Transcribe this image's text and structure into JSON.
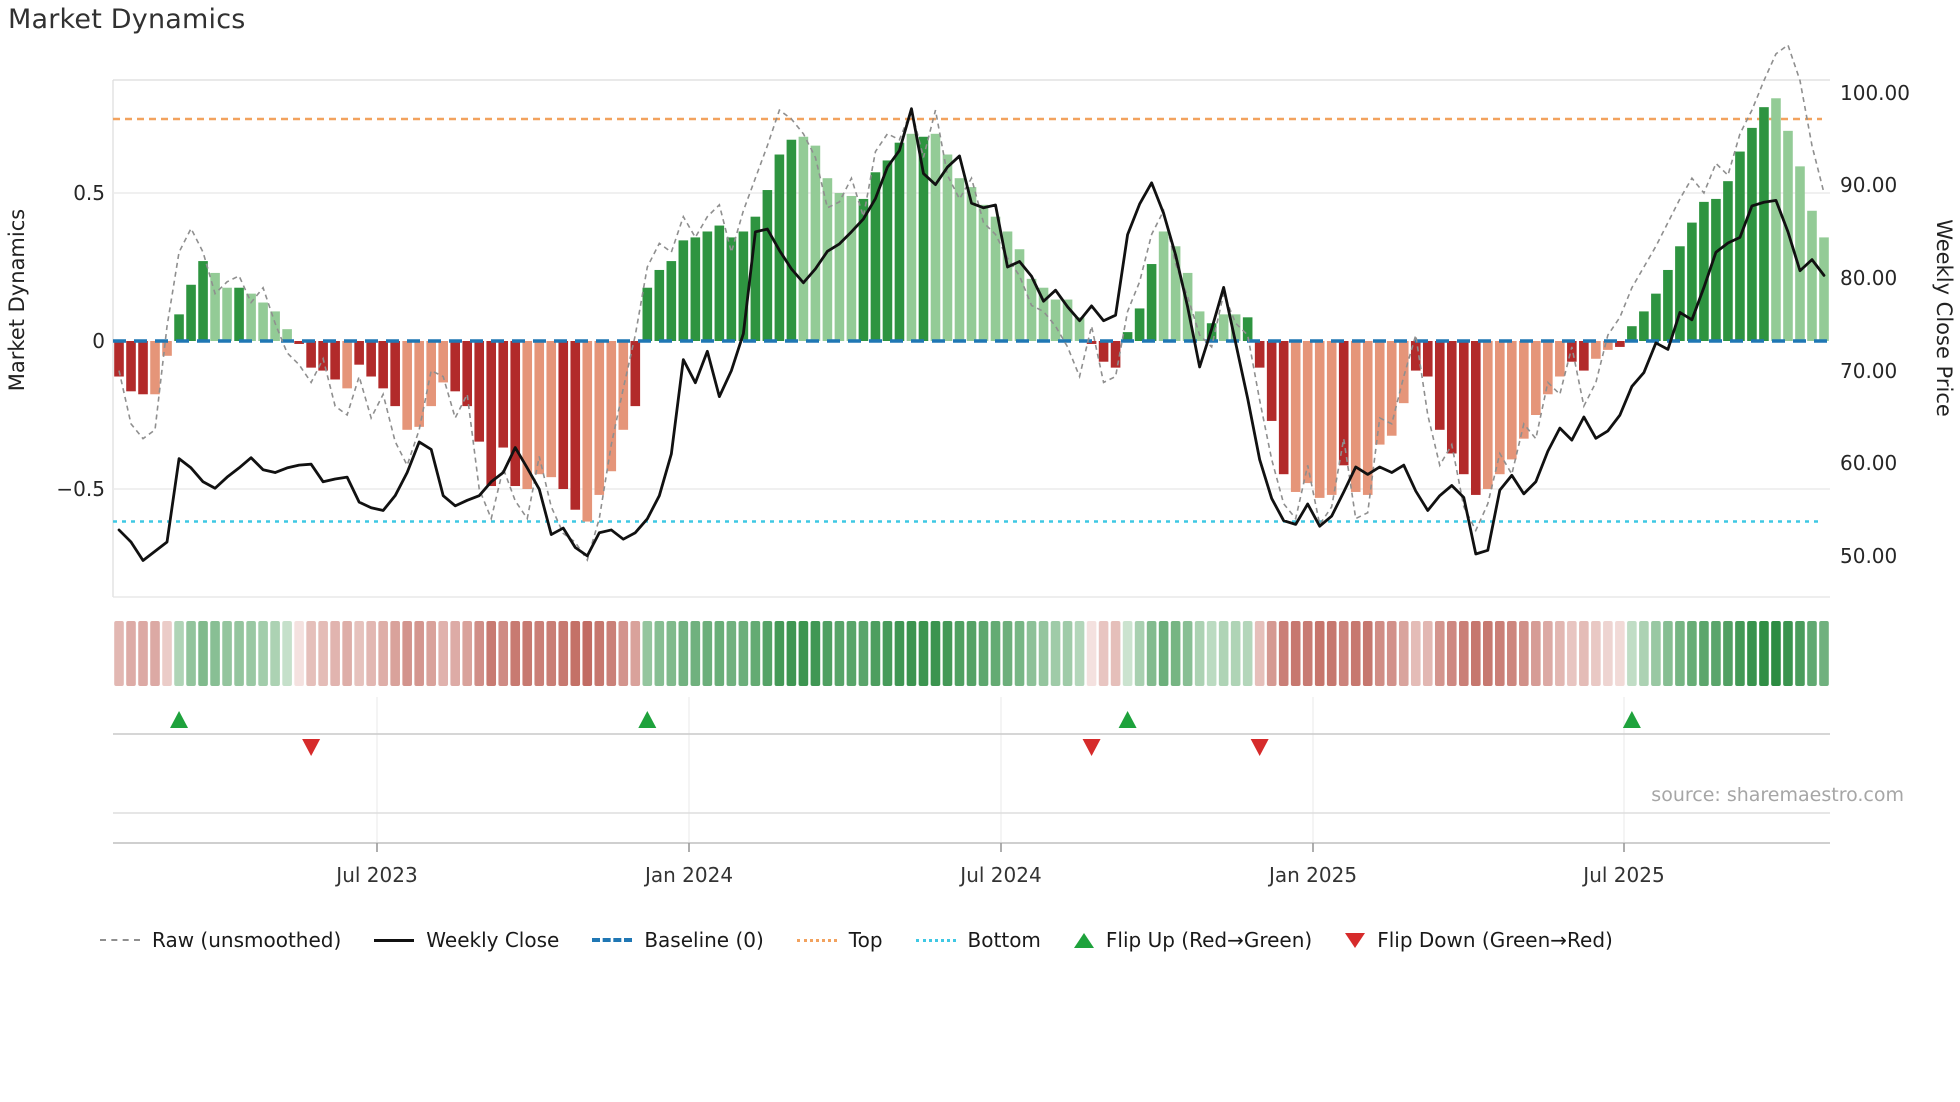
{
  "title": "Market Dynamics",
  "source": "source: sharemaestro.com",
  "left_axis": {
    "label": "Market Dynamics",
    "ticks": [
      {
        "label": "0.5",
        "value": 0.5
      },
      {
        "label": "0",
        "value": 0.0
      },
      {
        "label": "−0.5",
        "value": -0.5
      }
    ]
  },
  "right_axis": {
    "label": "Weekly Close Price",
    "ticks": [
      {
        "label": "100.00",
        "value": 100
      },
      {
        "label": "90.00",
        "value": 90
      },
      {
        "label": "80.00",
        "value": 80
      },
      {
        "label": "70.00",
        "value": 70
      },
      {
        "label": "60.00",
        "value": 60
      },
      {
        "label": "50.00",
        "value": 50
      }
    ]
  },
  "x_axis": {
    "ticks": [
      {
        "label": "Jul 2023",
        "week": 21.5
      },
      {
        "label": "Jan 2024",
        "week": 47.5
      },
      {
        "label": "Jul 2024",
        "week": 73.5
      },
      {
        "label": "Jan 2025",
        "week": 99.5
      },
      {
        "label": "Jul 2025",
        "week": 125.4
      }
    ]
  },
  "legend": {
    "raw": "Raw (unsmoothed)",
    "close": "Weekly Close",
    "baseline": "Baseline (0)",
    "top": "Top",
    "bottom": "Bottom",
    "flip_up": "Flip Up (Red→Green)",
    "flip_down": "Flip Down (Green→Red)"
  },
  "colors": {
    "bar_pos_dark": "#2e9440",
    "bar_pos_light": "#93cb96",
    "bar_neg_dark": "#b22a2a",
    "bar_neg_light": "#e59579",
    "close_line": "#111111",
    "raw_line": "#8f8f8f",
    "baseline": "#1f77b4",
    "top_line": "#f2a25e",
    "bottom_line": "#3fc8e4",
    "flip_up": "#1ea23c",
    "flip_down": "#d62b2b"
  },
  "chart_data": {
    "type": "bar",
    "title": "Market Dynamics",
    "x_unit": "weekly, Feb 2023 – Oct 2025",
    "n_points": 143,
    "baseline": 0,
    "top_threshold": 0.75,
    "bottom_threshold": -0.61,
    "left_ylim": [
      -0.86,
      0.88
    ],
    "right_ylim": [
      45.6,
      101.4
    ],
    "legend_position": "bottom",
    "flip_up_weeks": [
      5,
      44,
      84,
      126
    ],
    "flip_down_weeks": [
      16,
      81,
      95
    ],
    "series": [
      {
        "name": "Market Dynamics (smoothed bars)",
        "type": "bar",
        "axis": "left",
        "shade": "dddlldddlldllllddddlddddllllddddddlllddllllddddddddddddddlllllddddldllllllllllllldddddd lllldllddddlllldllllldddddd lllllllddlldddddddddddddllll",
        "values": [
          -0.12,
          -0.17,
          -0.18,
          -0.18,
          -0.05,
          0.09,
          0.19,
          0.27,
          0.23,
          0.18,
          0.18,
          0.16,
          0.13,
          0.1,
          0.04,
          -0.01,
          -0.09,
          -0.1,
          -0.13,
          -0.16,
          -0.08,
          -0.12,
          -0.16,
          -0.22,
          -0.3,
          -0.29,
          -0.22,
          -0.14,
          -0.17,
          -0.22,
          -0.34,
          -0.49,
          -0.36,
          -0.49,
          -0.5,
          -0.45,
          -0.46,
          -0.5,
          -0.57,
          -0.61,
          -0.52,
          -0.44,
          -0.3,
          -0.22,
          0.18,
          0.24,
          0.27,
          0.34,
          0.35,
          0.37,
          0.39,
          0.35,
          0.37,
          0.42,
          0.51,
          0.63,
          0.68,
          0.69,
          0.66,
          0.55,
          0.5,
          0.49,
          0.48,
          0.57,
          0.61,
          0.67,
          0.7,
          0.69,
          0.7,
          0.63,
          0.55,
          0.52,
          0.46,
          0.42,
          0.37,
          0.31,
          0.21,
          0.18,
          0.14,
          0.14,
          0.08,
          -0.01,
          -0.07,
          -0.09,
          0.03,
          0.11,
          0.26,
          0.37,
          0.32,
          0.23,
          0.1,
          0.06,
          0.09,
          0.09,
          0.08,
          -0.09,
          -0.27,
          -0.45,
          -0.51,
          -0.48,
          -0.53,
          -0.52,
          -0.42,
          -0.51,
          -0.52,
          -0.35,
          -0.32,
          -0.21,
          -0.1,
          -0.12,
          -0.3,
          -0.38,
          -0.45,
          -0.52,
          -0.5,
          -0.45,
          -0.4,
          -0.33,
          -0.25,
          -0.18,
          -0.12,
          -0.07,
          -0.1,
          -0.06,
          -0.03,
          -0.02,
          0.05,
          0.1,
          0.16,
          0.24,
          0.32,
          0.4,
          0.47,
          0.48,
          0.54,
          0.64,
          0.72,
          0.79,
          0.82,
          0.71,
          0.59,
          0.44,
          0.35
        ]
      },
      {
        "name": "Raw (unsmoothed)",
        "type": "line-dashed",
        "axis": "left",
        "values": [
          -0.1,
          -0.28,
          -0.33,
          -0.3,
          0.05,
          0.3,
          0.38,
          0.3,
          0.16,
          0.2,
          0.22,
          0.13,
          0.18,
          0.06,
          -0.04,
          -0.08,
          -0.14,
          -0.06,
          -0.22,
          -0.25,
          -0.12,
          -0.26,
          -0.18,
          -0.34,
          -0.42,
          -0.3,
          -0.1,
          -0.12,
          -0.26,
          -0.18,
          -0.5,
          -0.6,
          -0.43,
          -0.54,
          -0.6,
          -0.39,
          -0.56,
          -0.65,
          -0.68,
          -0.74,
          -0.6,
          -0.35,
          -0.16,
          0.02,
          0.25,
          0.33,
          0.3,
          0.42,
          0.35,
          0.42,
          0.46,
          0.3,
          0.44,
          0.55,
          0.66,
          0.78,
          0.75,
          0.7,
          0.62,
          0.45,
          0.47,
          0.55,
          0.42,
          0.64,
          0.7,
          0.68,
          0.78,
          0.62,
          0.78,
          0.56,
          0.48,
          0.55,
          0.4,
          0.36,
          0.28,
          0.22,
          0.12,
          0.1,
          0.05,
          -0.02,
          -0.12,
          0.05,
          -0.14,
          -0.12,
          0.1,
          0.2,
          0.36,
          0.44,
          0.26,
          0.15,
          0.02,
          -0.02,
          0.16,
          0.06,
          0.02,
          -0.2,
          -0.4,
          -0.55,
          -0.6,
          -0.42,
          -0.62,
          -0.56,
          -0.33,
          -0.6,
          -0.58,
          -0.26,
          -0.28,
          -0.12,
          0.02,
          -0.25,
          -0.42,
          -0.35,
          -0.56,
          -0.64,
          -0.55,
          -0.38,
          -0.45,
          -0.28,
          -0.33,
          -0.14,
          -0.18,
          -0.02,
          -0.22,
          -0.14,
          0.02,
          0.08,
          0.18,
          0.25,
          0.32,
          0.4,
          0.48,
          0.55,
          0.5,
          0.6,
          0.56,
          0.7,
          0.78,
          0.88,
          0.97,
          1.0,
          0.88,
          0.66,
          0.5
        ]
      },
      {
        "name": "Weekly Close",
        "type": "line",
        "axis": "right",
        "values": [
          52.8,
          51.5,
          49.5,
          50.5,
          51.5,
          60.5,
          59.5,
          58.0,
          57.3,
          58.5,
          59.5,
          60.6,
          59.3,
          59.0,
          59.5,
          59.8,
          59.9,
          58.0,
          58.3,
          58.5,
          55.8,
          55.2,
          54.9,
          56.5,
          59.0,
          62.3,
          61.5,
          56.5,
          55.4,
          56.0,
          56.5,
          58.0,
          59.0,
          61.7,
          59.5,
          57.2,
          52.3,
          53.0,
          50.9,
          50.0,
          52.5,
          52.8,
          51.8,
          52.5,
          54.0,
          56.5,
          61.0,
          71.2,
          68.7,
          72.1,
          67.2,
          70.0,
          74.0,
          85.0,
          85.3,
          83.0,
          81.0,
          79.5,
          81.0,
          82.9,
          83.7,
          85.0,
          86.4,
          88.6,
          92.0,
          93.8,
          98.3,
          91.3,
          90.1,
          92.0,
          93.2,
          88.1,
          87.6,
          87.9,
          81.2,
          81.8,
          80.2,
          77.5,
          78.7,
          76.9,
          75.4,
          77.0,
          75.4,
          76.0,
          84.7,
          88.0,
          90.3,
          87.0,
          82.5,
          76.9,
          70.4,
          74.5,
          79.0,
          73.0,
          67.0,
          60.4,
          56.2,
          53.8,
          53.4,
          55.6,
          53.2,
          54.3,
          56.9,
          59.6,
          58.8,
          59.6,
          59.0,
          59.8,
          57.0,
          54.9,
          56.5,
          57.6,
          56.3,
          50.2,
          50.6,
          57.1,
          58.7,
          56.7,
          58.0,
          61.3,
          63.8,
          62.5,
          65.0,
          62.7,
          63.5,
          65.2,
          68.3,
          69.8,
          73.0,
          72.3,
          76.3,
          75.5,
          79.0,
          82.8,
          83.8,
          84.4,
          87.8,
          88.2,
          88.4,
          85.0,
          80.8,
          82.0,
          80.3
        ]
      }
    ],
    "heatmap": "strip below main plot: one cell per week, red→green diverging shade derived from bar values"
  }
}
